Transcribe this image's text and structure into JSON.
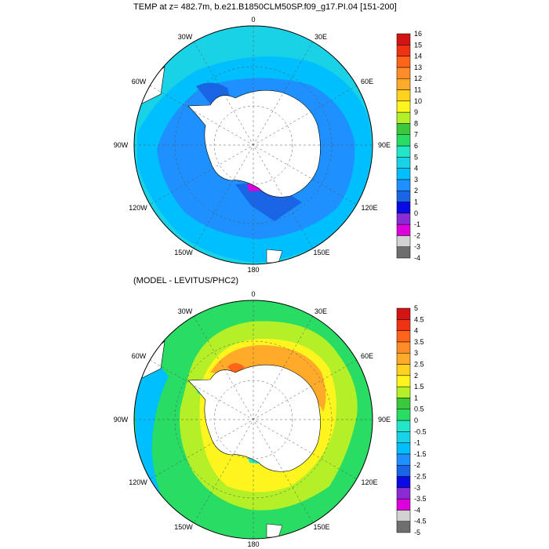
{
  "figure": {
    "top_title": "TEMP at z= 482.7m, b.e21.B1850CLM50SP.f09_g17.PI.04 [151-200]",
    "bottom_title": "(MODEL - LEVITUS/PHC2)"
  },
  "longitude_labels": [
    "0",
    "30E",
    "60E",
    "90E",
    "120E",
    "150E",
    "180",
    "150W",
    "120W",
    "90W",
    "60W",
    "30W"
  ],
  "top_panel": {
    "colorbar": {
      "labels": [
        "-4",
        "-3",
        "-2",
        "-1",
        "0",
        "1",
        "2",
        "3",
        "4",
        "5",
        "6",
        "7",
        "8",
        "9",
        "10",
        "11",
        "12",
        "13",
        "14",
        "15",
        "16"
      ],
      "colors": [
        "#6e6e6e",
        "#d2d2d2",
        "#dd00dd",
        "#8a2bd6",
        "#0a0ae6",
        "#1a64e6",
        "#1e90ff",
        "#00bfff",
        "#1ad2e6",
        "#22e6c8",
        "#28dc64",
        "#3cc83c",
        "#b4f028",
        "#fff51e",
        "#ffd21e",
        "#ffaa28",
        "#ff8c28",
        "#ff6419",
        "#f03214",
        "#d21414"
      ]
    }
  },
  "bottom_panel": {
    "colorbar": {
      "labels": [
        "-5",
        "-4.5",
        "-4",
        "-3.5",
        "-3",
        "-2.5",
        "-2",
        "-1.5",
        "-1",
        "-0.5",
        "0",
        "0.5",
        "1",
        "1.5",
        "2",
        "2.5",
        "3",
        "3.5",
        "4",
        "4.5",
        "5"
      ],
      "colors": [
        "#6e6e6e",
        "#d2d2d2",
        "#dd00dd",
        "#8a2bd6",
        "#0a0ae6",
        "#1a64e6",
        "#1e90ff",
        "#00bfff",
        "#1ad2e6",
        "#22e6c8",
        "#28dc64",
        "#3cc83c",
        "#b4f028",
        "#fff51e",
        "#ffd21e",
        "#ffaa28",
        "#ff8c28",
        "#ff6419",
        "#f03214",
        "#d21414"
      ]
    }
  }
}
